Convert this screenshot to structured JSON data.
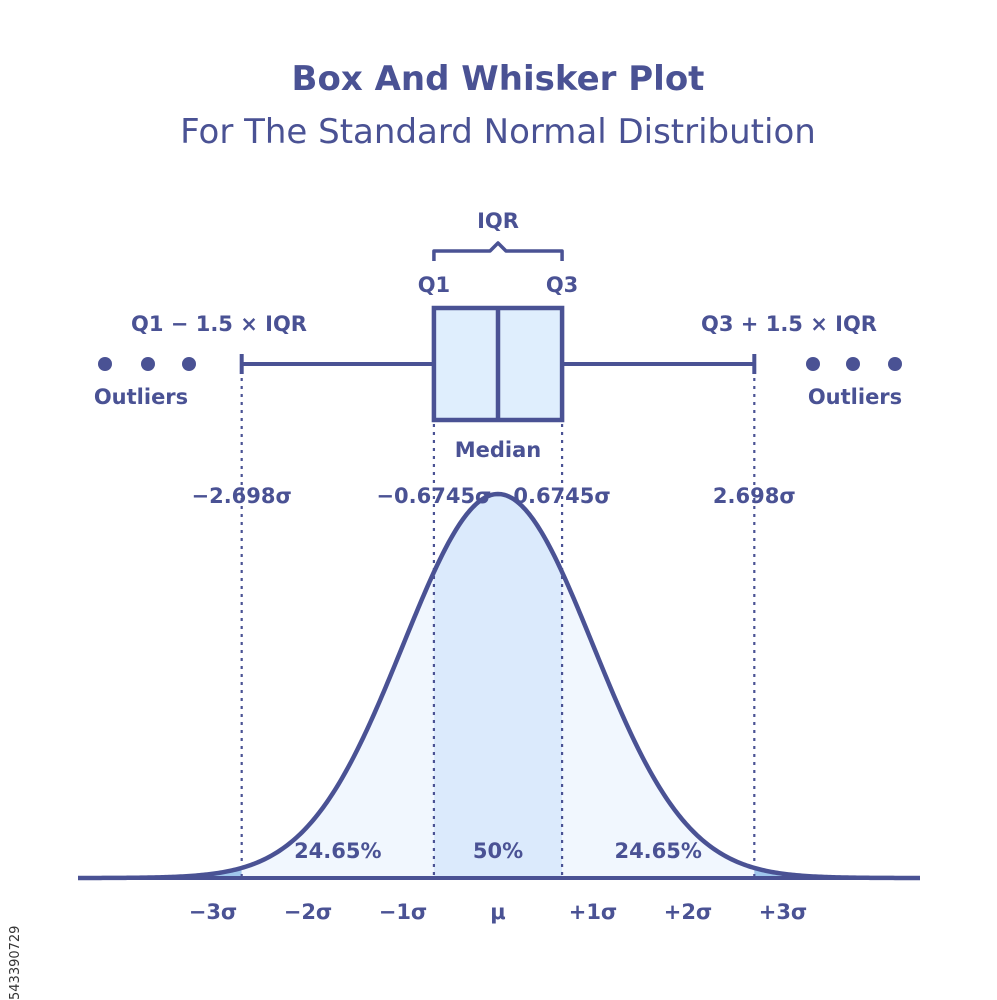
{
  "title": "Box And Whisker Plot",
  "subtitle": "For The Standard Normal Distribution",
  "colors": {
    "ink": "#4a5294",
    "box_fill": "#dfeefd",
    "middle_fill": "#dbeafc",
    "side_fill": "#f1f7fe",
    "tail_fill": "#9fc6ec"
  },
  "boxplot": {
    "iqr_label": "IQR",
    "q1_label": "Q1",
    "q3_label": "Q3",
    "median_label": "Median",
    "lower_fence_label": "Q1 − 1.5 × IQR",
    "upper_fence_label": "Q3 + 1.5 × IQR",
    "outliers_left": "Outliers",
    "outliers_right": "Outliers",
    "lower_fence_value": "−2.698σ",
    "q1_value": "−0.6745σ",
    "q3_value": "0.6745σ",
    "upper_fence_value": "2.698σ"
  },
  "chart_data": {
    "type": "area",
    "x_range": [
      -3.5,
      3.5
    ],
    "mean": 0,
    "sd": 1,
    "marks": {
      "lower_fence": -2.698,
      "q1": -0.6745,
      "median": 0,
      "q3": 0.6745,
      "upper_fence": 2.698
    },
    "regions": [
      {
        "from": -2.698,
        "to": -0.6745,
        "label": "24.65%"
      },
      {
        "from": -0.6745,
        "to": 0.6745,
        "label": "50%"
      },
      {
        "from": 0.6745,
        "to": 2.698,
        "label": "24.65%"
      }
    ],
    "tick_labels": [
      "−3σ",
      "−2σ",
      "−1σ",
      "μ",
      "+1σ",
      "+2σ",
      "+3σ"
    ]
  },
  "side_text": "543390729"
}
